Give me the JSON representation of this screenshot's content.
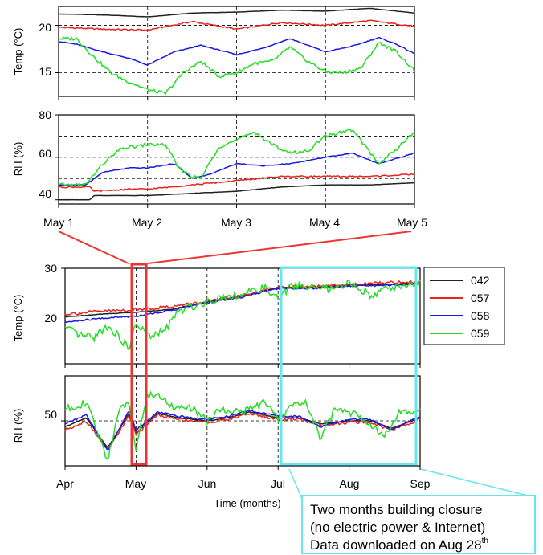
{
  "legend": [
    {
      "name": "042",
      "color": "#222222"
    },
    {
      "name": "057",
      "color": "#e8231c"
    },
    {
      "name": "058",
      "color": "#1a1adf"
    },
    {
      "name": "059",
      "color": "#22dd22"
    }
  ],
  "annotation": {
    "line1": "Two months building closure",
    "line2": "(no electric power & Internet)",
    "line3": "Data downloaded on Aug 28",
    "sup": "th"
  },
  "highlight_colors": {
    "zoom_box": "#ee3333",
    "closure_box": "#66e6ee"
  },
  "chart_data": [
    {
      "type": "line",
      "ylabel": "Temp (°C)",
      "xlim": [
        1,
        5
      ],
      "ylim": [
        12.5,
        22
      ],
      "yticks": [
        15,
        20
      ],
      "grid": "dashed",
      "series": [
        {
          "name": "042",
          "x": [
            1,
            1.5,
            2,
            2.5,
            3,
            3.5,
            4,
            4.5,
            5
          ],
          "y": [
            21.2,
            21.1,
            20.9,
            21.3,
            21.4,
            21.6,
            21.5,
            21.8,
            21.3
          ]
        },
        {
          "name": "057",
          "x": [
            1,
            1.5,
            2,
            2.5,
            3,
            3.5,
            4,
            4.5,
            5
          ],
          "y": [
            19.8,
            19.6,
            19.5,
            20.4,
            19.6,
            20.3,
            20.0,
            20.5,
            19.9
          ]
        },
        {
          "name": "058",
          "x": [
            1,
            1.2,
            1.5,
            1.8,
            2,
            2.3,
            2.6,
            3,
            3.3,
            3.6,
            4,
            4.3,
            4.6,
            4.8,
            5
          ],
          "y": [
            18.3,
            18.0,
            17.2,
            16.5,
            15.8,
            17.2,
            17.9,
            16.9,
            17.6,
            18.6,
            17.2,
            17.8,
            18.7,
            18.0,
            17.0
          ]
        },
        {
          "name": "059",
          "x": [
            1,
            1.2,
            1.4,
            1.6,
            1.8,
            2,
            2.2,
            2.4,
            2.6,
            2.8,
            3,
            3.2,
            3.4,
            3.6,
            3.8,
            4,
            4.2,
            4.4,
            4.6,
            4.8,
            5
          ],
          "y": [
            18.6,
            18.6,
            16.6,
            14.9,
            14.0,
            13.2,
            12.8,
            15.0,
            16.2,
            14.6,
            15.0,
            16.0,
            16.2,
            17.7,
            16.2,
            15.1,
            15.0,
            15.5,
            18.2,
            17.2,
            15.2
          ]
        }
      ]
    },
    {
      "type": "line",
      "ylabel": "RH (%)",
      "xlim": [
        1,
        5
      ],
      "ylim": [
        38,
        80
      ],
      "yticks": [
        40,
        60,
        80
      ],
      "xticklabels": [
        "May 1",
        "May 2",
        "May 3",
        "May 4",
        "May 5"
      ],
      "grid": "dashed",
      "series": [
        {
          "name": "042",
          "x": [
            1,
            1.35,
            1.4,
            1.8,
            2,
            2.5,
            3,
            3.5,
            4,
            4.5,
            5
          ],
          "y": [
            40,
            40,
            42,
            42,
            42,
            43,
            44,
            46,
            47,
            47,
            48
          ]
        },
        {
          "name": "057",
          "x": [
            1,
            1.35,
            1.4,
            1.8,
            2,
            2.5,
            3,
            3.5,
            4,
            4.5,
            5
          ],
          "y": [
            46,
            46,
            44,
            45,
            45,
            47,
            49,
            51,
            51,
            51,
            52
          ]
        },
        {
          "name": "058",
          "x": [
            1,
            1.3,
            1.5,
            1.8,
            2,
            2.3,
            2.5,
            2.7,
            3,
            3.3,
            3.6,
            4,
            4.3,
            4.6,
            5
          ],
          "y": [
            47,
            47,
            53,
            55,
            55,
            57,
            50,
            52,
            57,
            56,
            57,
            60,
            62,
            57,
            62
          ]
        },
        {
          "name": "059",
          "x": [
            1,
            1.3,
            1.5,
            1.7,
            2,
            2.2,
            2.35,
            2.5,
            2.6,
            2.8,
            3,
            3.2,
            3.4,
            3.6,
            3.8,
            4,
            4.3,
            4.6,
            4.8,
            5
          ],
          "y": [
            47,
            47,
            57,
            64,
            66,
            66,
            55,
            51,
            50,
            65,
            68,
            72,
            66,
            62,
            63,
            70,
            73,
            57,
            64,
            72
          ]
        }
      ]
    },
    {
      "type": "line",
      "ylabel": "Temp (°C)",
      "xlim": [
        0,
        5
      ],
      "ylim": [
        10,
        30
      ],
      "yticks": [
        20,
        30
      ],
      "grid": "dashed",
      "series": [
        {
          "name": "042",
          "x": [
            0,
            0.5,
            1,
            1.5,
            2,
            2.5,
            3,
            3.5,
            4,
            4.5,
            5
          ],
          "y": [
            19.8,
            20.4,
            20.8,
            21.4,
            23.0,
            24.2,
            26.0,
            26.0,
            26.5,
            26.6,
            27.0
          ]
        },
        {
          "name": "057",
          "x": [
            0,
            0.5,
            1,
            1.5,
            2,
            2.5,
            3,
            3.5,
            4,
            4.5,
            5
          ],
          "y": [
            20.4,
            21.0,
            21.3,
            22.0,
            23.0,
            24.2,
            26.1,
            26.1,
            26.5,
            27.0,
            27.2
          ]
        },
        {
          "name": "058",
          "x": [
            0,
            0.5,
            1,
            1.5,
            2,
            2.5,
            3,
            3.5,
            4,
            4.5,
            5
          ],
          "y": [
            18.7,
            19.5,
            20.0,
            21.2,
            22.8,
            24.0,
            25.8,
            25.8,
            26.3,
            26.4,
            26.8
          ]
        },
        {
          "name": "059",
          "x": [
            0,
            0.2,
            0.4,
            0.6,
            0.8,
            0.9,
            1,
            1.2,
            1.4,
            1.6,
            1.8,
            2,
            2.2,
            2.5,
            2.8,
            3,
            3.2,
            3.5,
            3.8,
            4,
            4.3,
            4.6,
            5
          ],
          "y": [
            17.5,
            16.0,
            15.5,
            18.0,
            15.0,
            13.0,
            18.5,
            15.5,
            17.0,
            21.0,
            22.0,
            23.0,
            24.0,
            24.5,
            26.0,
            23.5,
            26.5,
            26.0,
            25.5,
            27.0,
            24.5,
            26.0,
            27.0
          ]
        }
      ]
    },
    {
      "type": "line",
      "ylabel": "RH (%)",
      "xlim": [
        0,
        5
      ],
      "ylim": [
        20,
        80
      ],
      "yticks": [
        50
      ],
      "xticklabels": [
        "Apr",
        "May",
        "Jun",
        "Jul",
        "Aug",
        "Sep"
      ],
      "xlabel": "Time (months)",
      "grid": "dashed",
      "series": [
        {
          "name": "042",
          "x": [
            0,
            0.3,
            0.6,
            0.9,
            1,
            1.3,
            1.6,
            2,
            2.3,
            2.6,
            3,
            3.3,
            3.6,
            4,
            4.3,
            4.6,
            5
          ],
          "y": [
            46,
            52,
            32,
            55,
            42,
            55,
            52,
            50,
            52,
            56,
            52,
            52,
            48,
            50,
            50,
            45,
            52
          ]
        },
        {
          "name": "057",
          "x": [
            0,
            0.3,
            0.6,
            0.9,
            1,
            1.3,
            1.6,
            2,
            2.3,
            2.6,
            3,
            3.3,
            3.6,
            4,
            4.3,
            4.6,
            5
          ],
          "y": [
            44,
            50,
            31,
            53,
            41,
            54,
            51,
            49,
            51,
            55,
            51,
            51,
            47,
            49,
            49,
            44,
            51
          ]
        },
        {
          "name": "058",
          "x": [
            0,
            0.3,
            0.6,
            0.9,
            1,
            1.3,
            1.6,
            2,
            2.3,
            2.6,
            3,
            3.3,
            3.6,
            4,
            4.3,
            4.6,
            5
          ],
          "y": [
            48,
            54,
            30,
            57,
            44,
            56,
            53,
            51,
            53,
            57,
            53,
            53,
            46,
            51,
            51,
            44,
            53
          ]
        },
        {
          "name": "059",
          "x": [
            0,
            0.15,
            0.3,
            0.6,
            0.75,
            0.9,
            1,
            1.15,
            1.3,
            1.5,
            1.8,
            2,
            2.2,
            2.5,
            2.8,
            3,
            3.2,
            3.4,
            3.6,
            3.8,
            4,
            4.2,
            4.5,
            4.7,
            5
          ],
          "y": [
            58,
            60,
            62,
            24,
            56,
            62,
            32,
            66,
            68,
            60,
            58,
            50,
            58,
            56,
            62,
            52,
            60,
            62,
            38,
            58,
            56,
            52,
            40,
            55,
            56
          ]
        }
      ]
    }
  ]
}
